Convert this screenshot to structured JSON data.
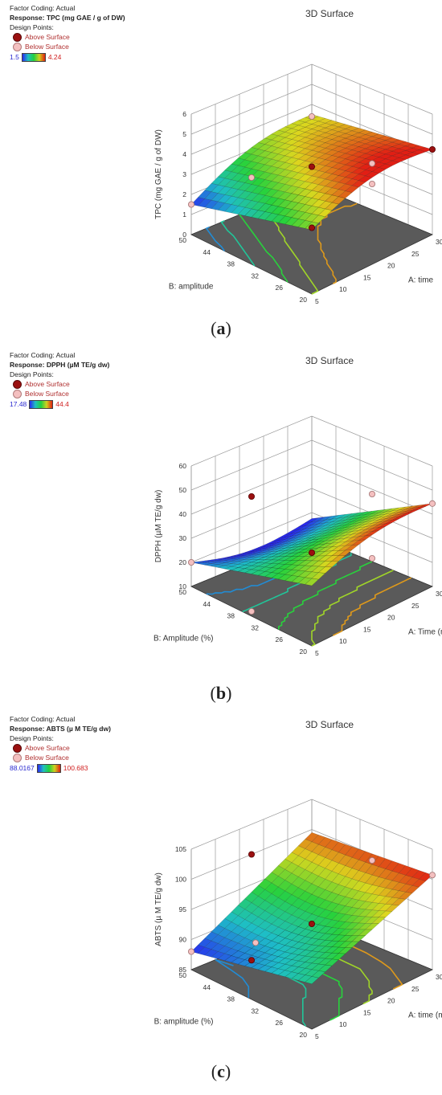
{
  "panels": [
    {
      "legend": {
        "factor_coding": "Factor Coding: Actual",
        "response": "Response: TPC (mg GAE / g of DW)",
        "design_points": "Design Points:",
        "above": "Above Surface",
        "below": "Below Surface",
        "cmin": "1.5",
        "cmax": "4.24"
      },
      "title": "3D Surface",
      "caption_letter": "a"
    },
    {
      "legend": {
        "factor_coding": "Factor Coding: Actual",
        "response": "Response: DPPH (µM TE/g dw)",
        "design_points": "Design Points:",
        "above": "Above Surface",
        "below": "Below Surface",
        "cmin": "17.48",
        "cmax": "44.4"
      },
      "title": "3D Surface",
      "caption_letter": "b"
    },
    {
      "legend": {
        "factor_coding": "Factor Coding: Actual",
        "response": "Response: ABTS (µ M TE/g dw)",
        "design_points": "Design Points:",
        "above": "Above Surface",
        "below": "Below Surface",
        "cmin": "88.0167",
        "cmax": "100.683"
      },
      "title": "3D Surface",
      "caption_letter": "c"
    }
  ],
  "chart_data": [
    {
      "type": "surface3d",
      "title": "3D Surface",
      "zlabel": "TPC (mg GAE / g of DW)",
      "xlabel": "A: time",
      "ylabel": "B: amplitude",
      "x_ticks": [
        "5",
        "10",
        "15",
        "20",
        "25",
        "30"
      ],
      "y_ticks": [
        "20",
        "26",
        "32",
        "38",
        "44",
        "50"
      ],
      "z_ticks": [
        "0",
        "1",
        "2",
        "3",
        "4",
        "5",
        "6"
      ],
      "xlim": [
        5,
        30
      ],
      "ylim": [
        20,
        50
      ],
      "zlim": [
        0,
        6
      ],
      "color_range": [
        1.5,
        4.24
      ],
      "corner_values": {
        "t5_a50": 1.5,
        "t30_a50": 3.5,
        "t5_a20": 3.2,
        "t30_a20": 4.24
      },
      "design_points": [
        {
          "time": 5,
          "amplitude": 50,
          "value": 1.5,
          "position": "below"
        },
        {
          "time": 5,
          "amplitude": 20,
          "value": 3.3,
          "position": "above"
        },
        {
          "time": 17.5,
          "amplitude": 35,
          "value": 3.5,
          "position": "above"
        },
        {
          "time": 17.5,
          "amplitude": 50,
          "value": 1.6,
          "position": "below"
        },
        {
          "time": 30,
          "amplitude": 50,
          "value": 3.4,
          "position": "below"
        },
        {
          "time": 30,
          "amplitude": 20,
          "value": 4.24,
          "position": "above"
        },
        {
          "time": 17.5,
          "amplitude": 20,
          "value": 4.0,
          "position": "below"
        },
        {
          "time": 30,
          "amplitude": 35,
          "value": 2.3,
          "position": "below"
        }
      ]
    },
    {
      "type": "surface3d",
      "title": "3D Surface",
      "zlabel": "DPPH (µM TE/g dw)",
      "xlabel": "A: Time (min)",
      "ylabel": "B: Amplitude (%)",
      "x_ticks": [
        "5",
        "10",
        "15",
        "20",
        "25",
        "30"
      ],
      "y_ticks": [
        "20",
        "26",
        "32",
        "38",
        "44",
        "50"
      ],
      "z_ticks": [
        "10",
        "20",
        "30",
        "40",
        "50",
        "60"
      ],
      "xlim": [
        5,
        30
      ],
      "ylim": [
        20,
        50
      ],
      "zlim": [
        10,
        60
      ],
      "color_range": [
        17.48,
        44.4
      ],
      "corner_values": {
        "t5_a50": 20,
        "t30_a50": 17.5,
        "t5_a20": 35,
        "t30_a20": 44.4
      },
      "design_points": [
        {
          "time": 5,
          "amplitude": 50,
          "value": 20,
          "position": "below"
        },
        {
          "time": 17.5,
          "amplitude": 50,
          "value": 37,
          "position": "above"
        },
        {
          "time": 5,
          "amplitude": 35,
          "value": 12,
          "position": "below"
        },
        {
          "time": 17.5,
          "amplitude": 35,
          "value": 25,
          "position": "above"
        },
        {
          "time": 17.5,
          "amplitude": 20,
          "value": 34,
          "position": "below"
        },
        {
          "time": 30,
          "amplitude": 35,
          "value": 38,
          "position": "below"
        },
        {
          "time": 30,
          "amplitude": 20,
          "value": 44.4,
          "position": "below"
        }
      ]
    },
    {
      "type": "surface3d",
      "title": "3D Surface",
      "zlabel": "ABTS (µ M TE/g dw)",
      "xlabel": "A: time (min)",
      "ylabel": "B: amplitude (%)",
      "x_ticks": [
        "5",
        "10",
        "15",
        "20",
        "25",
        "30"
      ],
      "y_ticks": [
        "20",
        "26",
        "32",
        "38",
        "44",
        "50"
      ],
      "z_ticks": [
        "85",
        "90",
        "95",
        "100",
        "105"
      ],
      "xlim": [
        5,
        30
      ],
      "ylim": [
        20,
        50
      ],
      "zlim": [
        85,
        105
      ],
      "color_range": [
        88.0167,
        100.683
      ],
      "corner_values": {
        "t5_a50": 88.0,
        "t30_a50": 99.5,
        "t5_a20": 92.5,
        "t30_a20": 100.7
      },
      "design_points": [
        {
          "time": 5,
          "amplitude": 50,
          "value": 88.0,
          "position": "below"
        },
        {
          "time": 5,
          "amplitude": 35,
          "value": 91.5,
          "position": "above"
        },
        {
          "time": 10,
          "amplitude": 40,
          "value": 91,
          "position": "below"
        },
        {
          "time": 17.5,
          "amplitude": 35,
          "value": 93,
          "position": "above"
        },
        {
          "time": 17.5,
          "amplitude": 50,
          "value": 100,
          "position": "above"
        },
        {
          "time": 30,
          "amplitude": 35,
          "value": 99,
          "position": "below"
        },
        {
          "time": 30,
          "amplitude": 20,
          "value": 100.7,
          "position": "below"
        }
      ]
    }
  ]
}
